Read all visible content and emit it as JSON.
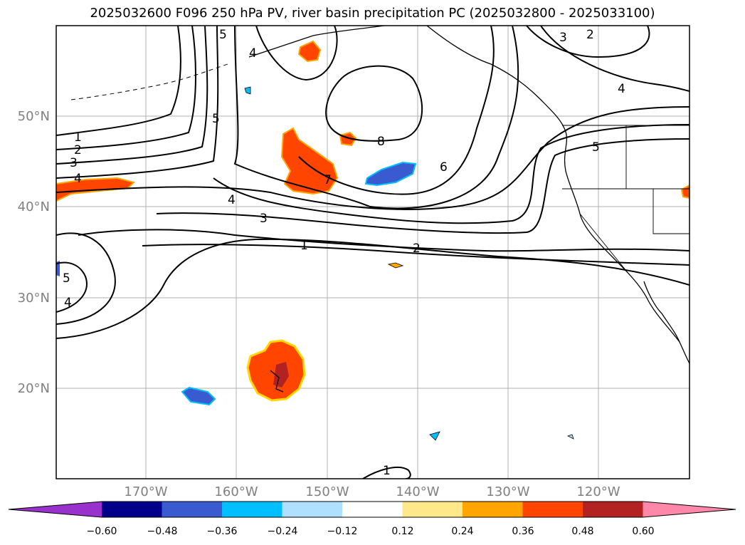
{
  "title": "2025032600 F096 250 hPa PV, river basin precipitation PC (2025032800 - 2025033100)",
  "map": {
    "lat_labels": [
      "50°N",
      "40°N",
      "30°N",
      "20°N"
    ],
    "lon_labels": [
      "170°W",
      "160°W",
      "150°W",
      "140°W",
      "130°W",
      "120°W"
    ],
    "grid_label_color": "#808080",
    "contour_labels": [
      "1",
      "2",
      "3",
      "4",
      "5",
      "6",
      "7",
      "8",
      "1",
      "2",
      "3",
      "4",
      "5",
      "4",
      "5",
      "3",
      "2",
      "4",
      "4",
      "5",
      "1"
    ]
  },
  "colorbar": {
    "tick_labels": [
      "−0.60",
      "−0.48",
      "−0.36",
      "−0.24",
      "−0.12",
      "0.12",
      "0.24",
      "0.36",
      "0.48",
      "0.60"
    ],
    "colors": [
      "#9932cc",
      "#00008b",
      "#3a5bd0",
      "#00bfff",
      "#b0e0ff",
      "#ffffff",
      "#ffe88a",
      "#ffa500",
      "#ff4500",
      "#b22222",
      "#ff88aa"
    ]
  }
}
